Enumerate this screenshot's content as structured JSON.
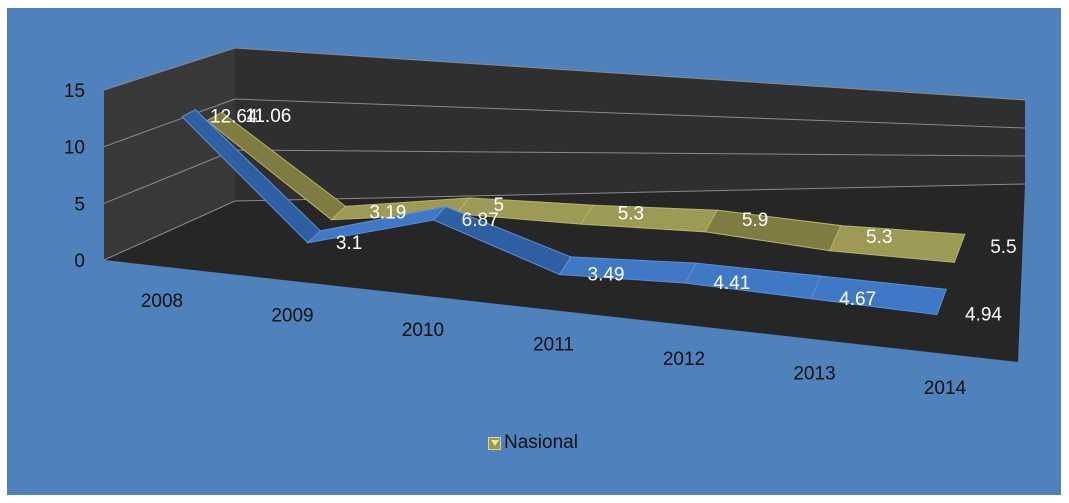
{
  "chart_data": {
    "type": "line",
    "style": "3d-ribbon",
    "categories": [
      "2008",
      "2009",
      "2010",
      "2011",
      "2012",
      "2013",
      "2014"
    ],
    "ylim": [
      0,
      15
    ],
    "yticks": [
      "0",
      "5",
      "10",
      "15"
    ],
    "grid": true,
    "legend_position": "bottom",
    "series": [
      {
        "name": "",
        "color": "#3a6fb5",
        "values": [
          12.64,
          3.1,
          6.87,
          3.49,
          4.41,
          4.67,
          4.94
        ]
      },
      {
        "name": "Nasional",
        "color": "#8c8a4a",
        "values": [
          11.06,
          3.19,
          5,
          5.3,
          5.9,
          5.3,
          5.5
        ]
      }
    ]
  },
  "legend": {
    "label": "Nasional"
  },
  "colors": {
    "background": "#4f81bd",
    "plot_back": "#2f2f2f",
    "floor": "#262626"
  }
}
